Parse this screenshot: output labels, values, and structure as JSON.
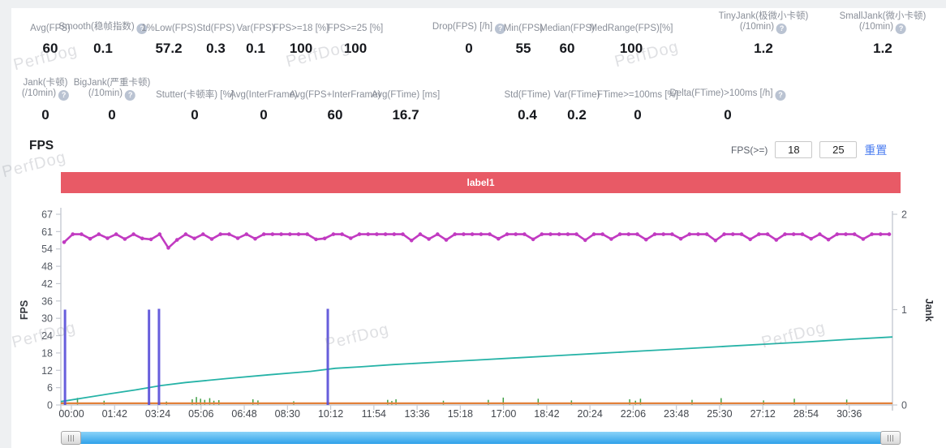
{
  "watermark": "PerfDog",
  "stats_row1": [
    {
      "label": "Avg(FPS)",
      "value": "60"
    },
    {
      "label": "Smooth(稳帧指数)",
      "help": true,
      "value": "0.1"
    },
    {
      "label": "1%Low(FPS)",
      "value": "57.2"
    },
    {
      "label": "Std(FPS)",
      "value": "0.3"
    },
    {
      "label": "Var(FPS)",
      "value": "0.1"
    },
    {
      "label": "FPS>=18 [%]",
      "value": "100"
    },
    {
      "label": "FPS>=25 [%]",
      "value": "100"
    },
    {
      "label": "Drop(FPS) [/h]",
      "help": true,
      "value": "0"
    },
    {
      "label": "Min(FPS)",
      "value": "55"
    },
    {
      "label": "Median(FPS)",
      "value": "60"
    },
    {
      "label": "MedRange(FPS)[%]",
      "value": "100"
    },
    {
      "label": "TinyJank(极微小卡顿)",
      "label2": "(/10min)",
      "help": true,
      "value": "1.2"
    },
    {
      "label": "SmallJank(微小卡顿)",
      "label2": "(/10min)",
      "help": true,
      "value": "1.2"
    }
  ],
  "stats_row2": [
    {
      "label": "Jank(卡顿)",
      "label2": "(/10min)",
      "help": true,
      "value": "0"
    },
    {
      "label": "BigJank(严重卡顿)",
      "label2": "(/10min)",
      "help": true,
      "value": "0"
    },
    {
      "label": "Stutter(卡顿率) [%]",
      "value": "0"
    },
    {
      "label": "Avg(InterFrame)",
      "value": "0"
    },
    {
      "label": "Avg(FPS+InterFrame)",
      "value": "60"
    },
    {
      "label": "Avg(FTime) [ms]",
      "value": "16.7"
    },
    {
      "label": "Std(FTime)",
      "value": "0.4"
    },
    {
      "label": "Var(FTime)",
      "value": "0.2"
    },
    {
      "label": "FTime>=100ms [%]",
      "value": "0"
    },
    {
      "label": "Delta(FTime)>100ms [/h]",
      "help": true,
      "value": "0"
    }
  ],
  "fps_section": {
    "title": "FPS",
    "filter_label": "FPS(>=)",
    "threshold1": "18",
    "threshold2": "25",
    "reset_label": "重置"
  },
  "chart_data": {
    "type": "line",
    "title": "FPS",
    "banner_label": "label1",
    "ylabel_left": "FPS",
    "ylabel_right": "Jank",
    "yticks_left": [
      "67",
      "61",
      "54",
      "48",
      "42",
      "36",
      "30",
      "24",
      "18",
      "12",
      "6",
      "0"
    ],
    "yticks_right": [
      "2",
      "1",
      "0"
    ],
    "ylim_left": [
      0,
      67
    ],
    "ylim_right": [
      0,
      2
    ],
    "xticks": [
      "00:00",
      "01:42",
      "03:24",
      "05:06",
      "06:48",
      "08:30",
      "10:12",
      "11:54",
      "13:36",
      "15:18",
      "17:00",
      "18:42",
      "20:24",
      "22:06",
      "23:48",
      "25:30",
      "27:12",
      "28:54",
      "30:36"
    ],
    "grid": false,
    "legend": "none",
    "colors": {
      "banner": "#e85a66",
      "scrollbar": "#2fa1ea",
      "scrollbar_light": "#8bd3f9",
      "axis": "#c6cad2",
      "tick_text": "#555a63"
    },
    "series": [
      {
        "name": "fps",
        "type": "line+dots",
        "axis": "left",
        "color": "#c13ac1",
        "base": 60,
        "n_points": 96,
        "dips": [
          [
            0.005,
            57.2
          ],
          [
            0.03,
            58.4
          ],
          [
            0.055,
            58.6
          ],
          [
            0.075,
            58.3
          ],
          [
            0.095,
            58.5
          ],
          [
            0.11,
            58.2
          ],
          [
            0.125,
            55.2
          ],
          [
            0.14,
            58.0
          ],
          [
            0.155,
            58.5
          ],
          [
            0.175,
            58.3
          ],
          [
            0.21,
            58.6
          ],
          [
            0.235,
            58.4
          ],
          [
            0.3,
            58.2
          ],
          [
            0.315,
            58.5
          ],
          [
            0.35,
            58.6
          ],
          [
            0.42,
            57.8
          ],
          [
            0.445,
            58.3
          ],
          [
            0.46,
            58.0
          ],
          [
            0.53,
            58.4
          ],
          [
            0.565,
            58.2
          ],
          [
            0.63,
            57.9
          ],
          [
            0.665,
            58.3
          ],
          [
            0.71,
            58.1
          ],
          [
            0.75,
            58.4
          ],
          [
            0.79,
            57.8
          ],
          [
            0.83,
            58.2
          ],
          [
            0.865,
            58.0
          ],
          [
            0.9,
            58.4
          ],
          [
            0.93,
            58.1
          ],
          [
            0.965,
            58.3
          ]
        ]
      },
      {
        "name": "cumulative-trend",
        "type": "line",
        "axis": "left",
        "color": "#26b3a7",
        "points": [
          [
            0,
            1.2
          ],
          [
            0.03,
            2.6
          ],
          [
            0.06,
            4.0
          ],
          [
            0.09,
            5.3
          ],
          [
            0.12,
            6.8
          ],
          [
            0.15,
            7.9
          ],
          [
            0.2,
            9.3
          ],
          [
            0.25,
            10.6
          ],
          [
            0.3,
            11.8
          ],
          [
            0.33,
            12.9
          ],
          [
            0.36,
            13.4
          ],
          [
            0.4,
            14.2
          ],
          [
            0.45,
            15.0
          ],
          [
            0.5,
            15.8
          ],
          [
            0.55,
            16.6
          ],
          [
            0.6,
            17.4
          ],
          [
            0.65,
            18.2
          ],
          [
            0.7,
            19.0
          ],
          [
            0.75,
            19.8
          ],
          [
            0.8,
            20.6
          ],
          [
            0.85,
            21.4
          ],
          [
            0.9,
            22.2
          ],
          [
            0.95,
            23.1
          ],
          [
            1,
            23.9
          ]
        ]
      },
      {
        "name": "baseline",
        "type": "hline",
        "axis": "left",
        "color": "#e2813b",
        "value": 0.6
      },
      {
        "name": "tall-spikes",
        "type": "vspikes",
        "axis": "left",
        "color": "#564cd8",
        "width": 3,
        "spikes": [
          [
            0.005,
            33.5
          ],
          [
            0.106,
            33.5
          ],
          [
            0.118,
            33.8
          ],
          [
            0.321,
            33.8
          ]
        ]
      },
      {
        "name": "jank-spikes",
        "type": "vspikes",
        "axis": "left",
        "color": "#3fa045",
        "width": 1.5,
        "spikes": [
          [
            0.02,
            2.5
          ],
          [
            0.052,
            1.5
          ],
          [
            0.127,
            1.2
          ],
          [
            0.158,
            2.0
          ],
          [
            0.163,
            2.8
          ],
          [
            0.168,
            2.2
          ],
          [
            0.173,
            1.8
          ],
          [
            0.179,
            2.4
          ],
          [
            0.184,
            1.5
          ],
          [
            0.19,
            1.7
          ],
          [
            0.231,
            2.0
          ],
          [
            0.237,
            1.6
          ],
          [
            0.28,
            1.3
          ],
          [
            0.393,
            1.8
          ],
          [
            0.398,
            1.4
          ],
          [
            0.403,
            2.0
          ],
          [
            0.46,
            1.5
          ],
          [
            0.514,
            1.8
          ],
          [
            0.532,
            2.6
          ],
          [
            0.574,
            2.2
          ],
          [
            0.614,
            1.6
          ],
          [
            0.684,
            2.0
          ],
          [
            0.691,
            1.5
          ],
          [
            0.697,
            2.2
          ],
          [
            0.759,
            1.8
          ],
          [
            0.794,
            2.4
          ],
          [
            0.845,
            1.6
          ],
          [
            0.882,
            2.2
          ],
          [
            0.945,
            1.9
          ]
        ]
      }
    ]
  }
}
